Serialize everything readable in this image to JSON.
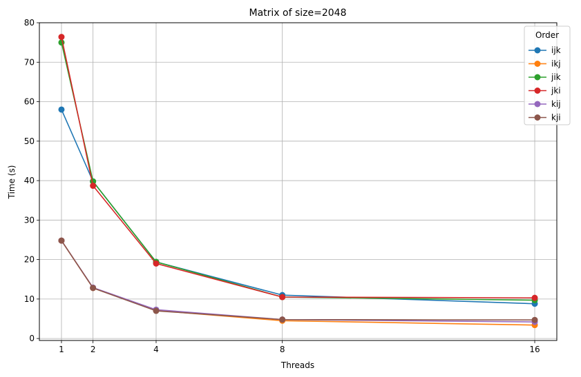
{
  "chart_data": {
    "type": "line",
    "title": "Matrix of size=2048",
    "xlabel": "Threads",
    "ylabel": "Time (s)",
    "x": [
      1,
      2,
      4,
      8,
      16
    ],
    "xlim": [
      0.3,
      16.7
    ],
    "ylim": [
      -0.5,
      80
    ],
    "xticks": [
      "1",
      "2",
      "4",
      "8",
      "16"
    ],
    "yticks": [
      "0",
      "10",
      "20",
      "30",
      "40",
      "50",
      "60",
      "70",
      "80"
    ],
    "grid": true,
    "legend": {
      "title": "Order",
      "placement": "top-right"
    },
    "series": [
      {
        "name": "ijk",
        "color": "#1f77b4",
        "values": [
          58.0,
          39.8,
          19.4,
          11.0,
          8.8
        ]
      },
      {
        "name": "ikj",
        "color": "#ff7f0e",
        "values": [
          24.8,
          12.8,
          7.1,
          4.5,
          3.4
        ]
      },
      {
        "name": "jik",
        "color": "#2ca02c",
        "values": [
          75.0,
          39.8,
          19.4,
          10.5,
          9.7
        ]
      },
      {
        "name": "jki",
        "color": "#d62728",
        "values": [
          76.4,
          38.7,
          19.0,
          10.5,
          10.3
        ]
      },
      {
        "name": "kij",
        "color": "#9467bd",
        "values": [
          24.8,
          12.9,
          7.3,
          4.8,
          4.2
        ]
      },
      {
        "name": "kji",
        "color": "#8c564b",
        "values": [
          24.8,
          12.8,
          7.0,
          4.8,
          4.7
        ]
      }
    ]
  }
}
